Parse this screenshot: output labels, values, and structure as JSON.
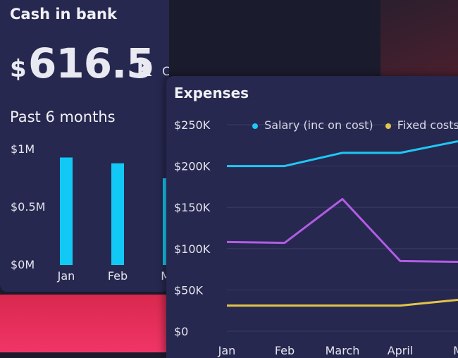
{
  "cash_card": {
    "title": "Cash in bank",
    "currency_symbol": "$",
    "amount": "616.5",
    "unit": "K",
    "current_label": "Current",
    "period_label": "Past 6 months"
  },
  "expenses_card": {
    "title": "Expenses"
  },
  "colors": {
    "background": "#1b1b2e",
    "card": "#27284f",
    "salary": "#1ec8f5",
    "fixed_costs": "#e3c44a",
    "purple_series": "#b25ce6",
    "bar": "#12c9f6",
    "accent_pink": "#f03566"
  },
  "chart_data": [
    {
      "type": "bar",
      "categories": [
        "Jan",
        "Feb",
        "Ma"
      ],
      "values": [
        0.93,
        0.88,
        0.75
      ],
      "y_ticks": [
        "$1M",
        "$0.5M",
        "$0M"
      ],
      "ylim": [
        0,
        1
      ],
      "ylabel": "",
      "xlabel": ""
    },
    {
      "type": "line",
      "categories": [
        "Jan",
        "Feb",
        "March",
        "April",
        "M"
      ],
      "y_ticks": [
        "$250K",
        "$200K",
        "$150K",
        "$100K",
        "$50K",
        "$0"
      ],
      "ylim": [
        0,
        250000
      ],
      "legend": [
        "Salary (inc on cost)",
        "Fixed costs"
      ],
      "series": [
        {
          "name": "Salary (inc on cost)",
          "color": "#1ec8f5",
          "values": [
            200000,
            200000,
            216000,
            216000,
            230000
          ]
        },
        {
          "color": "#b25ce6",
          "values": [
            108000,
            107000,
            160000,
            85000,
            84000
          ]
        },
        {
          "name": "Fixed costs",
          "color": "#e3c44a",
          "values": [
            31000,
            31000,
            31000,
            31000,
            38000
          ]
        }
      ]
    }
  ]
}
